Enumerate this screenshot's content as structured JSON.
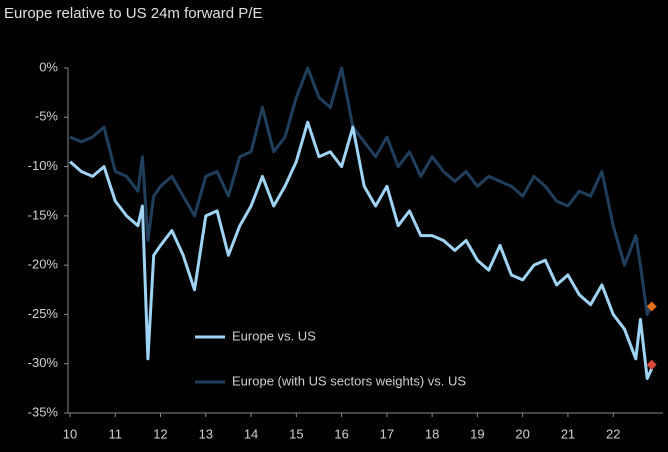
{
  "chart_data": {
    "type": "line",
    "title": "Europe relative to US 24m forward P/E",
    "x": [
      10,
      10.25,
      10.5,
      10.75,
      11,
      11.25,
      11.5,
      11.6,
      11.72,
      11.85,
      12,
      12.25,
      12.5,
      12.75,
      13,
      13.25,
      13.5,
      13.75,
      14,
      14.25,
      14.5,
      14.75,
      15,
      15.25,
      15.5,
      15.75,
      16,
      16.25,
      16.5,
      16.75,
      17,
      17.25,
      17.5,
      17.75,
      18,
      18.25,
      18.5,
      18.75,
      19,
      19.25,
      19.5,
      19.75,
      20,
      20.25,
      20.5,
      20.75,
      21,
      21.25,
      21.5,
      21.75,
      22,
      22.25,
      22.5,
      22.6,
      22.75,
      22.85
    ],
    "series": [
      {
        "name": "Europe vs. US",
        "color": "#9fd4f5",
        "values": [
          -9.5,
          -10.5,
          -11,
          -10,
          -13.5,
          -15,
          -16,
          -14,
          -29.5,
          -19,
          -18,
          -16.5,
          -19,
          -22.5,
          -15,
          -14.5,
          -19,
          -16,
          -14,
          -11,
          -14,
          -12,
          -9.5,
          -5.5,
          -9,
          -8.5,
          -10,
          -6,
          -12,
          -14,
          -12,
          -16,
          -14.5,
          -17,
          -17,
          -17.5,
          -18.5,
          -17.5,
          -19.5,
          -20.5,
          -18,
          -21,
          -21.5,
          -20,
          -19.5,
          -22,
          -21,
          -23,
          -24,
          -22,
          -25,
          -26.5,
          -29.5,
          -25.5,
          -31.5,
          -30.5
        ],
        "end_marker": {
          "x": 22.85,
          "value": -30.1,
          "color": "#d9483b"
        }
      },
      {
        "name": "Europe (with US sectors weights) vs. US",
        "color": "#1f3f5c",
        "values": [
          -7,
          -7.5,
          -7,
          -6,
          -10.5,
          -11,
          -12.5,
          -9,
          -17.5,
          -13,
          -12,
          -11,
          -13,
          -15,
          -11,
          -10.5,
          -13,
          -9,
          -8.5,
          -4,
          -8.5,
          -7,
          -3,
          0,
          -3,
          -4,
          0,
          -6,
          -7.5,
          -9,
          -7,
          -10,
          -8.5,
          -11,
          -9,
          -10.5,
          -11.5,
          -10.5,
          -12,
          -11,
          -11.5,
          -12,
          -13,
          -11,
          -12,
          -13.5,
          -14,
          -12.5,
          -13,
          -10.5,
          -16,
          -20,
          -17,
          -20,
          -25,
          -24
        ],
        "end_marker": {
          "x": 22.85,
          "value": -24.2,
          "color": "#e0701a"
        }
      }
    ],
    "xlim": [
      10,
      23.1
    ],
    "xticks": [
      10,
      11,
      12,
      13,
      14,
      15,
      16,
      17,
      18,
      19,
      20,
      21,
      22
    ],
    "ylim": [
      -35,
      0
    ],
    "yticks": [
      {
        "value": 0,
        "label": "0%"
      },
      {
        "value": -5,
        "label": "-5%"
      },
      {
        "value": -10,
        "label": "-10%"
      },
      {
        "value": -15,
        "label": "-15%"
      },
      {
        "value": -20,
        "label": "-20%"
      },
      {
        "value": -25,
        "label": "-25%"
      },
      {
        "value": -30,
        "label": "-30%"
      },
      {
        "value": -35,
        "label": "-35%"
      }
    ],
    "grid": false
  }
}
